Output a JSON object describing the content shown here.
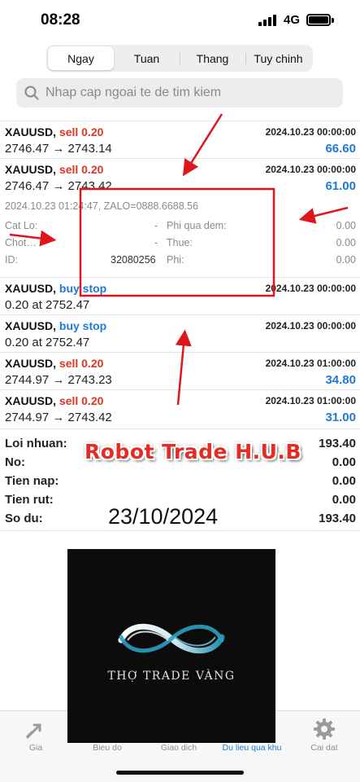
{
  "status": {
    "time": "08:28",
    "network": "4G"
  },
  "tabs_top": [
    {
      "label": "Ngay",
      "active": true
    },
    {
      "label": "Tuan",
      "active": false
    },
    {
      "label": "Thang",
      "active": false
    },
    {
      "label": "Tuy chinh",
      "active": false
    }
  ],
  "search": {
    "placeholder": "Nhap cap ngoai te de tim kiem"
  },
  "orders": [
    {
      "symbol": "XAUUSD,",
      "kind": "sell 0.20",
      "kind_color": "#e03424",
      "time": "2024.10.23 00:00:00",
      "prices": "2746.47 → 2743.14",
      "profit": "66.60"
    },
    {
      "symbol": "XAUUSD,",
      "kind": "sell 0.20",
      "kind_color": "#e03424",
      "time": "2024.10.23 00:00:00",
      "prices": "2746.47 → 2743.42",
      "profit": "61.00"
    },
    {
      "symbol": "XAUUSD,",
      "kind": "buy stop",
      "kind_color": "#1d7bd6",
      "time": "2024.10.23 00:00:00",
      "prices": "0.20 at 2752.47",
      "profit": ""
    },
    {
      "symbol": "XAUUSD,",
      "kind": "buy stop",
      "kind_color": "#1d7bd6",
      "time": "2024.10.23 00:00:00",
      "prices": "0.20 at 2752.47",
      "profit": ""
    },
    {
      "symbol": "XAUUSD,",
      "kind": "sell 0.20",
      "kind_color": "#e03424",
      "time": "2024.10.23 01:00:00",
      "prices": "2744.97 → 2743.23",
      "profit": "34.80"
    },
    {
      "symbol": "XAUUSD,",
      "kind": "sell 0.20",
      "kind_color": "#e03424",
      "time": "2024.10.23 01:00:00",
      "prices": "2744.97 → 2743.42",
      "profit": "31.00"
    }
  ],
  "detail": {
    "header": "2024.10.23 01:24:47, ZALO=0888.6688.56",
    "cat_lo_label": "Cat Lo:",
    "cat_lo_value": "-",
    "chot_label": "Chot…",
    "chot_value": "-",
    "id_label": "ID:",
    "id_value": "32080256",
    "phi_qua_dem_label": "Phi qua dem:",
    "phi_qua_dem_value": "0.00",
    "thue_label": "Thue:",
    "thue_value": "0.00",
    "phi_label": "Phi:",
    "phi_value": "0.00"
  },
  "summary": [
    {
      "label": "Loi nhuan:",
      "value": "193.40"
    },
    {
      "label": "No:",
      "value": "0.00"
    },
    {
      "label": "Tien nap:",
      "value": "0.00"
    },
    {
      "label": "Tien rut:",
      "value": "0.00"
    },
    {
      "label": "So du:",
      "value": "193.40"
    }
  ],
  "overlay": {
    "brand": "Robot Trade H.U.B",
    "date": "23/10/2024",
    "logo_text": "THỢ TRADE VÀNG"
  },
  "bottom_tabs": [
    {
      "label": "Gia",
      "icon": "trend-arrows-icon",
      "active": false
    },
    {
      "label": "Bieu do",
      "icon": "chart-icon",
      "active": false
    },
    {
      "label": "Giao dich",
      "icon": "trade-icon",
      "active": false
    },
    {
      "label": "Du lieu qua khu",
      "icon": "history-icon",
      "active": true
    },
    {
      "label": "Cai dat",
      "icon": "gear-icon",
      "active": false
    }
  ],
  "colors": {
    "accent": "#1d7bd6",
    "sell": "#e03424",
    "annotation": "#e0161d"
  }
}
